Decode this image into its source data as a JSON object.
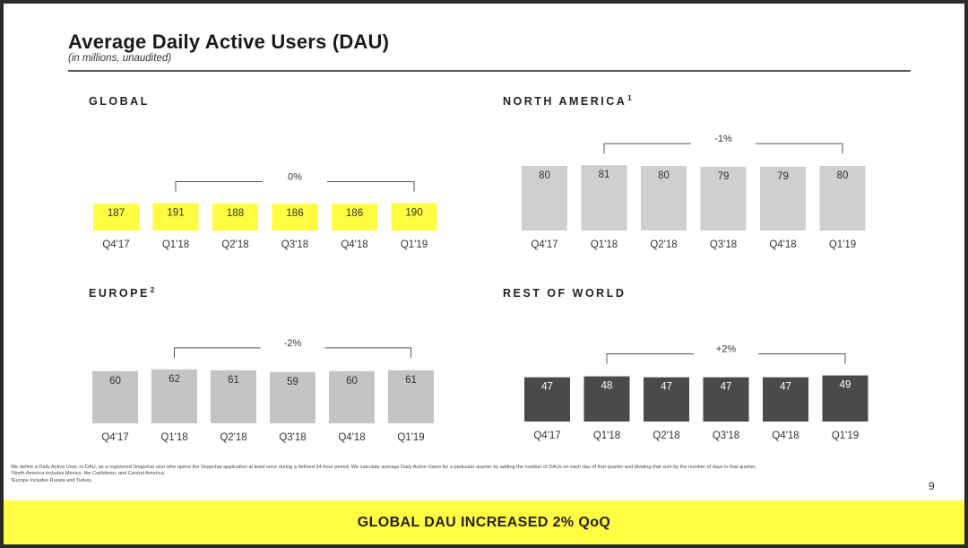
{
  "header": {
    "title": "Average Daily Active Users (DAU)",
    "subtitle": "(in millions, unaudited)"
  },
  "colors": {
    "global": "#fffc41",
    "north_america": "#cfcfcf",
    "europe": "#c4c4c4",
    "rest_of_world": "#4a4a4a",
    "bracket": "#555555"
  },
  "chart_data": [
    {
      "type": "bar",
      "key": "global",
      "title": "GLOBAL",
      "footnote_mark": "",
      "categories": [
        "Q4'17",
        "Q1'18",
        "Q2'18",
        "Q3'18",
        "Q4'18",
        "Q1'19"
      ],
      "values": [
        187,
        191,
        188,
        186,
        186,
        190
      ],
      "change_label": "0%",
      "value_label_color": "#333333"
    },
    {
      "type": "bar",
      "key": "north_america",
      "title": "NORTH AMERICA",
      "footnote_mark": "1",
      "categories": [
        "Q4'17",
        "Q1'18",
        "Q2'18",
        "Q3'18",
        "Q4'18",
        "Q1'19"
      ],
      "values": [
        80,
        81,
        80,
        79,
        79,
        80
      ],
      "change_label": "-1%",
      "value_label_color": "#333333"
    },
    {
      "type": "bar",
      "key": "europe",
      "title": "EUROPE",
      "footnote_mark": "2",
      "categories": [
        "Q4'17",
        "Q1'18",
        "Q2'18",
        "Q3'18",
        "Q4'18",
        "Q1'19"
      ],
      "values": [
        60,
        62,
        61,
        59,
        60,
        61
      ],
      "change_label": "-2%",
      "value_label_color": "#333333"
    },
    {
      "type": "bar",
      "key": "rest_of_world",
      "title": "REST OF WORLD",
      "footnote_mark": "",
      "categories": [
        "Q4'17",
        "Q1'18",
        "Q2'18",
        "Q3'18",
        "Q4'18",
        "Q1'19"
      ],
      "values": [
        47,
        48,
        47,
        47,
        47,
        49
      ],
      "change_label": "+2%",
      "value_label_color": "#ffffff"
    }
  ],
  "footnotes": [
    "We define a Daily Active User, or DAU, as a registered Snapchat user who opens the Snapchat application at least once during a defined 24-hour period. We calculate average Daily Active Users for a particular quarter by adding the number of DAUs on each day of that quarter and dividing that sum by the number of days in that quarter.",
    "¹North America includes Mexico, the Caribbean, and Central America.",
    "²Europe includes Russia and Turkey."
  ],
  "page_number": "9",
  "banner": "GLOBAL DAU INCREASED 2% QoQ"
}
